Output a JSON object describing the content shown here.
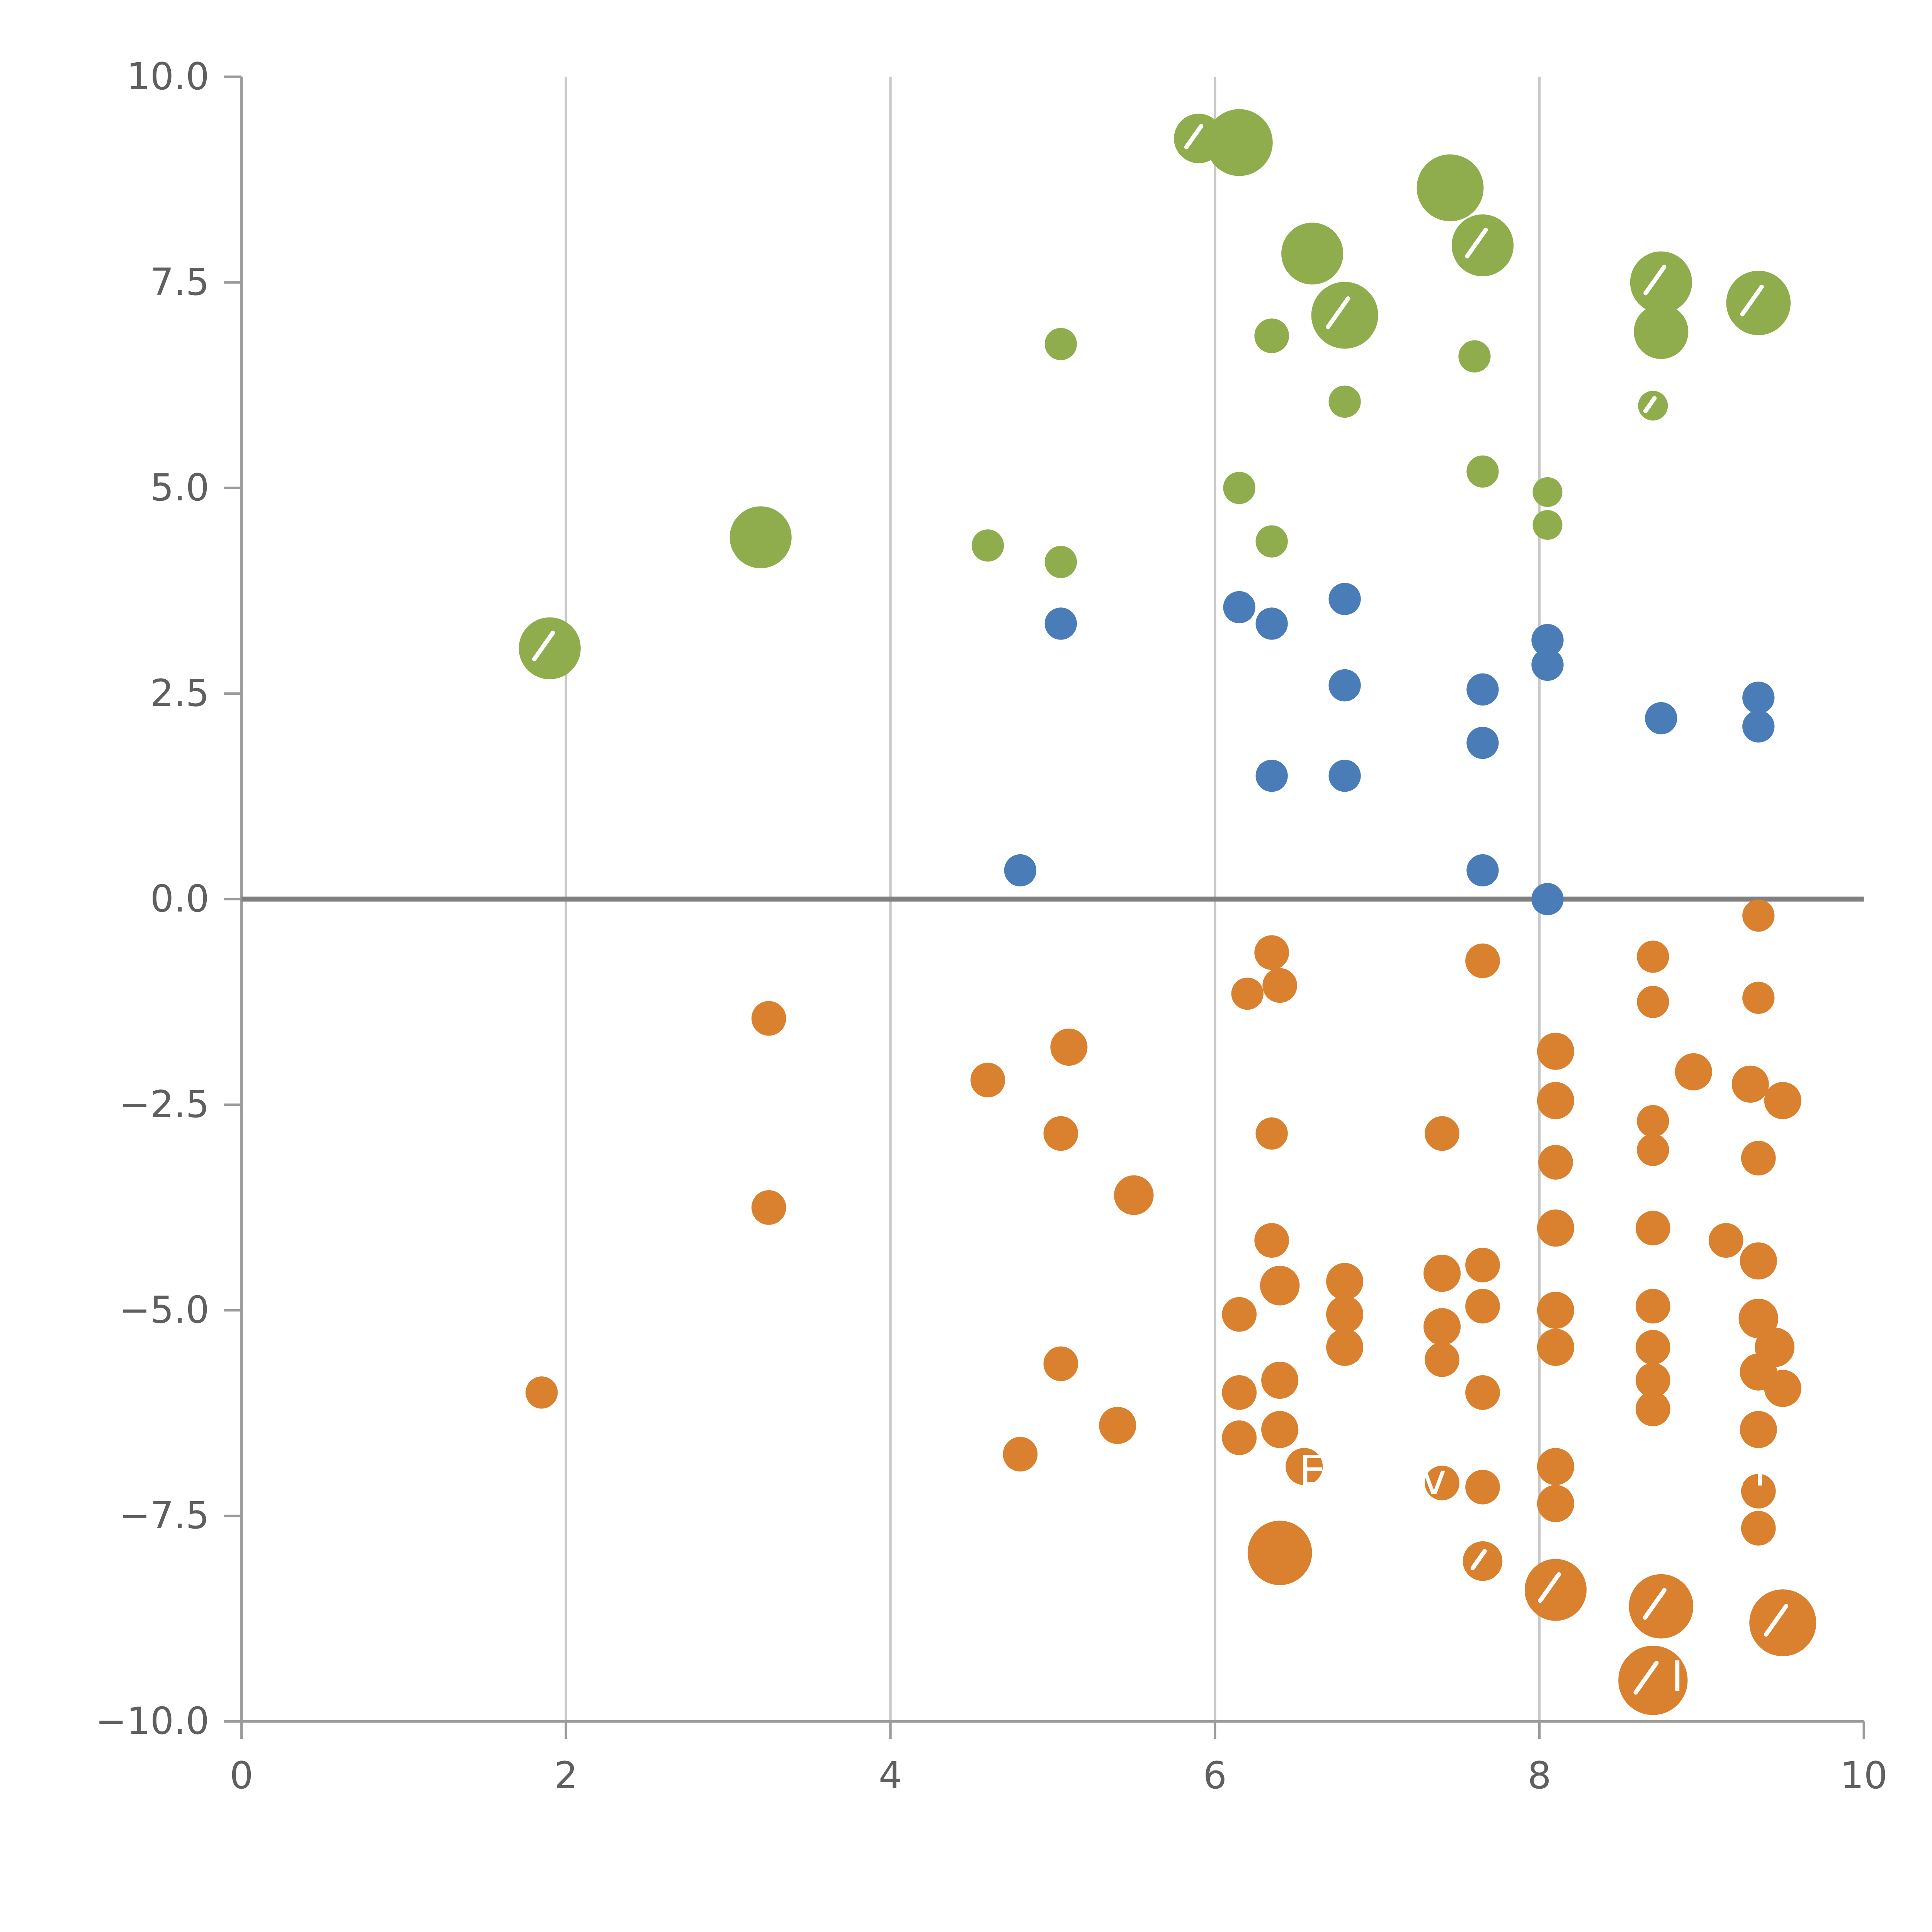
{
  "figure": {
    "background": "#ffffff"
  },
  "chart_data": {
    "type": "scatter",
    "title": "",
    "xlabel": "",
    "ylabel": "",
    "xlim": [
      0,
      10
    ],
    "ylim": [
      -10,
      10
    ],
    "x_tick_values": [
      0,
      2,
      4,
      6,
      8,
      10
    ],
    "x_tick_labels": [
      "0",
      "2",
      "4",
      "6",
      "8",
      "10"
    ],
    "y_tick_values": [
      10,
      7.5,
      5,
      2.5,
      0,
      -2.5,
      -5,
      -7.5,
      -10
    ],
    "y_tick_labels": [
      "10.0",
      "7.5",
      "5.0",
      "2.5",
      "0.0",
      "−2.5",
      "−5.0",
      "−7.5",
      "−10.0"
    ],
    "grid": {
      "vertical_at": [
        2,
        4,
        6,
        8
      ],
      "horizontal": false
    },
    "zero_line_y": 0,
    "legend": "none",
    "colors": {
      "grid": "#c9c9c9",
      "spine": "#9b9b9b",
      "zero_line": "#808080",
      "tick_label": "#5f5f5f",
      "bubble_mark": "#ffffff"
    },
    "series": [
      {
        "name": "green-group",
        "color": "#8fad4c",
        "points": [
          [
            5.9,
            9.25,
            20,
            1
          ],
          [
            6.15,
            9.2,
            27,
            0
          ],
          [
            7.45,
            8.65,
            27,
            0
          ],
          [
            7.65,
            7.95,
            25,
            1
          ],
          [
            6.6,
            7.85,
            25,
            0
          ],
          [
            6.8,
            7.1,
            27,
            1
          ],
          [
            8.75,
            7.5,
            25,
            1
          ],
          [
            8.75,
            6.9,
            22,
            0
          ],
          [
            9.35,
            7.25,
            26,
            1
          ],
          [
            6.35,
            6.85,
            14,
            0
          ],
          [
            5.05,
            6.75,
            13,
            0
          ],
          [
            6.8,
            6.05,
            13,
            0
          ],
          [
            7.6,
            6.6,
            13,
            0
          ],
          [
            8.7,
            6.0,
            12,
            1
          ],
          [
            7.65,
            5.2,
            13,
            0
          ],
          [
            6.15,
            5.0,
            13,
            0
          ],
          [
            8.05,
            4.95,
            12,
            0
          ],
          [
            8.05,
            4.55,
            12,
            0
          ],
          [
            6.35,
            4.35,
            13,
            0
          ],
          [
            4.6,
            4.3,
            13,
            0
          ],
          [
            5.05,
            4.1,
            13,
            0
          ],
          [
            3.2,
            4.4,
            25,
            0
          ],
          [
            1.9,
            3.05,
            25,
            1
          ]
        ]
      },
      {
        "name": "blue-group",
        "color": "#4a7db7",
        "points": [
          [
            5.05,
            3.35,
            13,
            0
          ],
          [
            6.15,
            3.55,
            13,
            0
          ],
          [
            6.35,
            3.35,
            13,
            0
          ],
          [
            6.8,
            3.65,
            13,
            0
          ],
          [
            6.8,
            2.6,
            13,
            0
          ],
          [
            8.05,
            3.15,
            13,
            0
          ],
          [
            8.05,
            2.85,
            13,
            0
          ],
          [
            7.65,
            2.55,
            13,
            0
          ],
          [
            7.65,
            1.9,
            13,
            0
          ],
          [
            8.75,
            2.2,
            13,
            0
          ],
          [
            9.35,
            2.45,
            13,
            0
          ],
          [
            9.35,
            2.1,
            13,
            0
          ],
          [
            6.35,
            1.5,
            13,
            0
          ],
          [
            6.8,
            1.5,
            13,
            0
          ],
          [
            4.8,
            0.35,
            13,
            0
          ],
          [
            7.65,
            0.35,
            13,
            0
          ],
          [
            8.05,
            0.0,
            13,
            0
          ]
        ]
      },
      {
        "name": "orange-group",
        "color": "#d9812e",
        "points": [
          [
            9.35,
            -0.2,
            13,
            0
          ],
          [
            6.35,
            -0.65,
            14,
            0
          ],
          [
            7.65,
            -0.75,
            14,
            0
          ],
          [
            8.7,
            -0.7,
            13,
            0
          ],
          [
            6.2,
            -1.15,
            13,
            0
          ],
          [
            6.4,
            -1.05,
            14,
            0
          ],
          [
            8.7,
            -1.25,
            13,
            0
          ],
          [
            9.35,
            -1.2,
            13,
            0
          ],
          [
            3.25,
            -1.45,
            14,
            0
          ],
          [
            5.1,
            -1.8,
            15,
            0
          ],
          [
            8.1,
            -1.85,
            15,
            0
          ],
          [
            4.6,
            -2.2,
            14,
            0
          ],
          [
            8.95,
            -2.1,
            15,
            0
          ],
          [
            9.3,
            -2.25,
            15,
            0
          ],
          [
            8.1,
            -2.45,
            15,
            0
          ],
          [
            9.5,
            -2.45,
            15,
            0
          ],
          [
            5.05,
            -2.85,
            14,
            0
          ],
          [
            6.35,
            -2.85,
            13,
            0
          ],
          [
            7.4,
            -2.85,
            14,
            0
          ],
          [
            8.7,
            -2.7,
            13,
            0
          ],
          [
            8.7,
            -3.05,
            13,
            0
          ],
          [
            8.1,
            -3.2,
            14,
            0
          ],
          [
            9.35,
            -3.15,
            14,
            0
          ],
          [
            5.5,
            -3.6,
            16,
            0
          ],
          [
            3.25,
            -3.75,
            14,
            0
          ],
          [
            8.1,
            -4.0,
            15,
            0
          ],
          [
            6.35,
            -4.15,
            14,
            0
          ],
          [
            8.7,
            -4.0,
            14,
            0
          ],
          [
            9.15,
            -4.15,
            14,
            0
          ],
          [
            9.35,
            -4.4,
            15,
            0
          ],
          [
            7.4,
            -4.55,
            15,
            0
          ],
          [
            7.65,
            -4.45,
            14,
            0
          ],
          [
            6.4,
            -4.7,
            16,
            0
          ],
          [
            6.8,
            -4.65,
            15,
            0
          ],
          [
            6.8,
            -5.05,
            15,
            0
          ],
          [
            6.15,
            -5.05,
            14,
            0
          ],
          [
            7.65,
            -4.95,
            14,
            0
          ],
          [
            8.7,
            -4.95,
            14,
            0
          ],
          [
            8.1,
            -5.0,
            15,
            0
          ],
          [
            7.4,
            -5.2,
            15,
            0
          ],
          [
            9.35,
            -5.1,
            16,
            0
          ],
          [
            9.45,
            -5.45,
            16,
            0
          ],
          [
            6.8,
            -5.45,
            15,
            0
          ],
          [
            8.1,
            -5.45,
            15,
            0
          ],
          [
            8.7,
            -5.45,
            14,
            0
          ],
          [
            7.4,
            -5.6,
            14,
            0
          ],
          [
            5.05,
            -5.65,
            14,
            0
          ],
          [
            6.4,
            -5.85,
            15,
            0
          ],
          [
            8.7,
            -5.85,
            14,
            0
          ],
          [
            9.35,
            -5.75,
            15,
            0
          ],
          [
            9.5,
            -5.95,
            15,
            0
          ],
          [
            6.15,
            -6.0,
            14,
            0
          ],
          [
            7.65,
            -6.0,
            14,
            0
          ],
          [
            1.85,
            -6.0,
            13,
            0
          ],
          [
            8.7,
            -6.2,
            14,
            0
          ],
          [
            5.4,
            -6.4,
            15,
            0
          ],
          [
            6.4,
            -6.45,
            15,
            0
          ],
          [
            6.15,
            -6.55,
            14,
            0
          ],
          [
            4.8,
            -6.75,
            14,
            0
          ],
          [
            9.35,
            -6.45,
            15,
            0
          ],
          [
            6.55,
            -6.9,
            15,
            0
          ],
          [
            8.1,
            -6.9,
            15,
            0
          ],
          [
            7.4,
            -7.1,
            14,
            0
          ],
          [
            7.65,
            -7.15,
            14,
            0
          ],
          [
            8.1,
            -7.35,
            15,
            0
          ],
          [
            9.35,
            -7.2,
            14,
            0
          ],
          [
            9.35,
            -7.65,
            14,
            0
          ],
          [
            6.4,
            -7.95,
            26,
            0
          ],
          [
            7.65,
            -8.05,
            16,
            1
          ],
          [
            8.1,
            -8.4,
            25,
            1
          ],
          [
            8.75,
            -8.6,
            26,
            1
          ],
          [
            8.7,
            -9.5,
            28,
            1
          ],
          [
            9.5,
            -8.8,
            27,
            1
          ]
        ]
      }
    ],
    "annotations": [
      {
        "text": "E",
        "x": 6.6,
        "y": -6.95
      },
      {
        "text": "v",
        "x": 7.35,
        "y": -7.05
      },
      {
        "text": "H",
        "x": 9.3,
        "y": -6.95
      },
      {
        "text": "I",
        "x": 8.85,
        "y": -9.45
      }
    ]
  }
}
